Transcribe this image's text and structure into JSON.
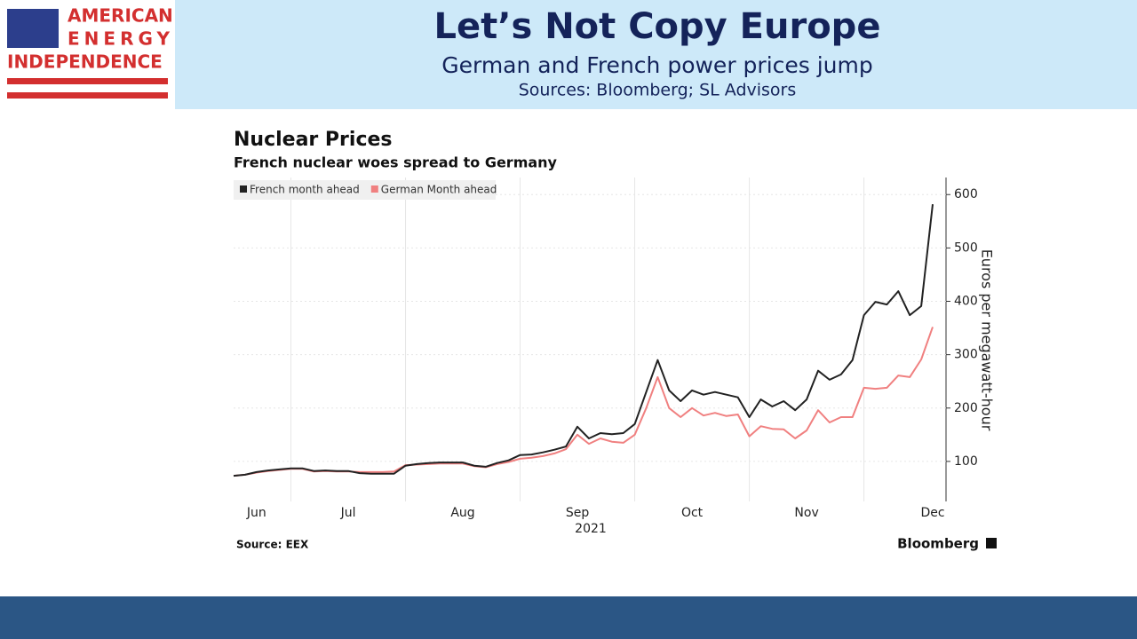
{
  "header": {
    "logo": [
      "AMERICAN",
      "ENERGY",
      "INDEPENDENCE"
    ],
    "title": "Let’s Not Copy Europe",
    "subtitle": "German and French power prices jump",
    "sources": "Sources: Bloomberg; SL Advisors"
  },
  "chart_data": {
    "type": "line",
    "title": "Nuclear Prices",
    "subtitle": "French nuclear woes spread to Germany",
    "y_label": "Euros per megawatt-hour",
    "x_label": "2021",
    "source": "Source: EEX",
    "brand": "Bloomberg",
    "categories": [
      null,
      null,
      "Jun",
      null,
      null,
      null,
      null,
      null,
      null,
      null,
      "Jul",
      null,
      null,
      null,
      null,
      null,
      null,
      null,
      null,
      null,
      "Aug",
      null,
      null,
      null,
      null,
      null,
      null,
      null,
      null,
      null,
      "Sep",
      null,
      null,
      null,
      null,
      null,
      null,
      null,
      null,
      null,
      "Oct",
      null,
      null,
      null,
      null,
      null,
      null,
      null,
      null,
      null,
      "Nov",
      null,
      null,
      null,
      null,
      null,
      null,
      null,
      null,
      null,
      null,
      "Dec"
    ],
    "series": [
      {
        "name": "French month ahead",
        "color": "#222222",
        "values": [
          73,
          75,
          80,
          83,
          85,
          87,
          87,
          82,
          83,
          82,
          82,
          78,
          77,
          77,
          77,
          92,
          95,
          97,
          98,
          98,
          98,
          92,
          90,
          97,
          102,
          112,
          113,
          117,
          122,
          128,
          165,
          143,
          153,
          151,
          153,
          170,
          230,
          290,
          233,
          213,
          233,
          225,
          230,
          225,
          220,
          183,
          216,
          203,
          213,
          196,
          216,
          270,
          253,
          263,
          290,
          374,
          399,
          394,
          419,
          374,
          391,
          582
        ]
      },
      {
        "name": "German Month ahead",
        "color": "#f08080",
        "values": [
          73,
          75,
          79,
          82,
          84,
          86,
          86,
          81,
          82,
          81,
          81,
          80,
          80,
          80,
          81,
          93,
          94,
          95,
          96,
          96,
          96,
          91,
          89,
          95,
          99,
          105,
          107,
          110,
          115,
          123,
          150,
          133,
          143,
          137,
          135,
          150,
          200,
          258,
          200,
          183,
          200,
          186,
          191,
          185,
          188,
          147,
          166,
          161,
          160,
          143,
          158,
          196,
          173,
          183,
          183,
          238,
          236,
          238,
          261,
          258,
          291,
          352
        ]
      }
    ],
    "ylim": [
      25,
      632
    ],
    "yticks": [
      100,
      200,
      300,
      400,
      500,
      600
    ],
    "grid": true,
    "legend": "top-left"
  }
}
